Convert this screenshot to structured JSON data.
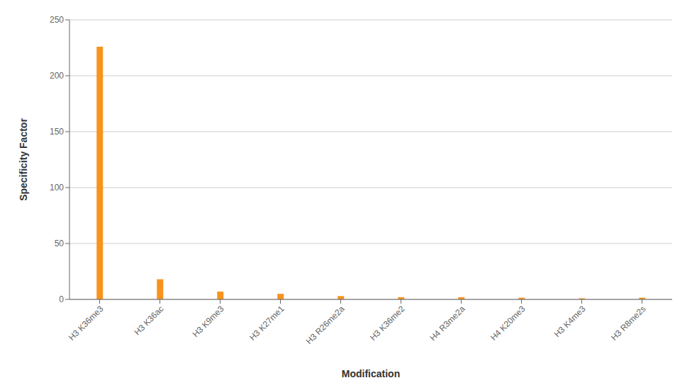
{
  "chart_data": {
    "type": "bar",
    "categories": [
      "H3 K36me3",
      "H3 K36ac",
      "H3 K9me3",
      "H3 K27me1",
      "H3 R26me2a",
      "H3 K36me2",
      "H4 R3me2a",
      "H4 K20me3",
      "H3 K4me3",
      "H3 R8me2s"
    ],
    "values": [
      226,
      18,
      7,
      5,
      3,
      2,
      2,
      1.5,
      1,
      1.5
    ],
    "color": "#F7941D",
    "xlabel": "Modification",
    "ylabel": "Specificity Factor",
    "ylim": [
      0,
      250
    ],
    "yticks": [
      0,
      50,
      100,
      150,
      200,
      250
    ],
    "grid": true
  }
}
